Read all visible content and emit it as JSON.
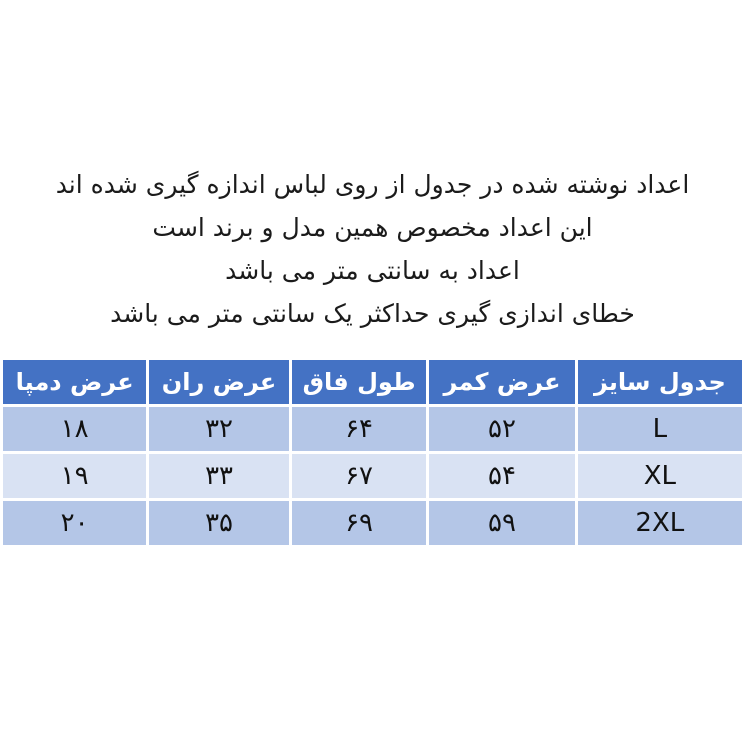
{
  "page": {
    "bg_color": "#ffffff",
    "text_color": "#1b1b1b"
  },
  "notes": {
    "lines": [
      "اعداد نوشته شده در جدول از روی لباس اندازه گیری شده اند",
      "این اعداد مخصوص همین مدل و برند است",
      "اعداد به سانتی متر می باشد",
      "خطای اندازی گیری حداکثر یک سانتی متر می باشد"
    ]
  },
  "size_table": {
    "direction": "rtl",
    "header_bg": "#4472C4",
    "header_text_color": "#ffffff",
    "row_bg_odd": "#B4C6E7",
    "row_bg_even": "#D9E2F3",
    "columns": {
      "size": "جدول سایز",
      "waist_width": "عرض کمر",
      "rise_length": "طول فاق",
      "thigh_width": "عرض ران",
      "hem_width": "عرض دمپا"
    },
    "rows": [
      {
        "size": "L",
        "waist_width": "۵۲",
        "rise_length": "۶۴",
        "thigh_width": "۳۲",
        "hem_width": "۱۸"
      },
      {
        "size": "XL",
        "waist_width": "۵۴",
        "rise_length": "۶۷",
        "thigh_width": "۳۳",
        "hem_width": "۱۹"
      },
      {
        "size": "2XL",
        "waist_width": "۵۹",
        "rise_length": "۶۹",
        "thigh_width": "۳۵",
        "hem_width": "۲۰"
      }
    ]
  }
}
